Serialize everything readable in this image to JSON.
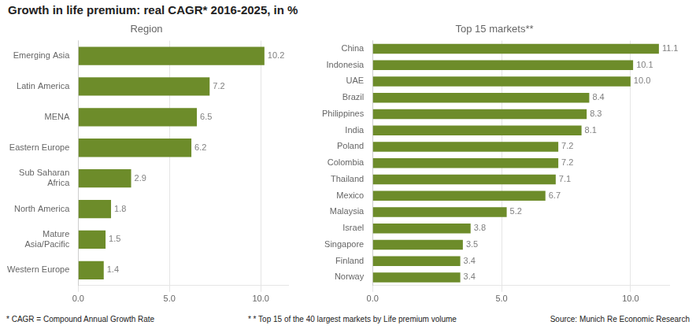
{
  "title": "Growth in life premium: real CAGR* 2016-2025, in %",
  "annotations": [
    "* CAGR = Compound Annual Growth Rate",
    "* * Top 15 of the 40 largest markets by Life premium volume",
    "Source: Munich Re Economic Research"
  ],
  "chart_data": [
    {
      "type": "bar",
      "orientation": "horizontal",
      "title": "Region",
      "categories": [
        "Western Europe",
        "Mature\nAsia/Pacific",
        "North America",
        "Sub Saharan\nAfrica",
        "Eastern Europe",
        "MENA",
        "Latin America",
        "Emerging Asia"
      ],
      "values": [
        1.4,
        1.5,
        1.8,
        2.9,
        6.2,
        6.5,
        7.2,
        10.2
      ],
      "value_labels": [
        "1.4",
        "1.5",
        "1.8",
        "2.9",
        "6.2",
        "6.5",
        "7.2",
        "10.2"
      ],
      "color": "#6d8c2a",
      "xlim": [
        0,
        11.5
      ],
      "xticks": [
        {
          "value": 0,
          "label": "0.0"
        },
        {
          "value": 5,
          "label": "5.0"
        },
        {
          "value": 10,
          "label": "10.0"
        }
      ],
      "grid": true,
      "data_labels": true
    },
    {
      "type": "bar",
      "orientation": "horizontal",
      "title": "Top 15 markets**",
      "categories": [
        "Norway",
        "Finland",
        "Singapore",
        "Israel",
        "Malaysia",
        "Mexico",
        "Thailand",
        "Colombia",
        "Poland",
        "India",
        "Philippines",
        "Brazil",
        "UAE",
        "Indonesia",
        "China"
      ],
      "values": [
        3.4,
        3.4,
        3.5,
        3.8,
        5.2,
        6.7,
        7.1,
        7.2,
        7.2,
        8.1,
        8.3,
        8.4,
        10.0,
        10.1,
        11.1
      ],
      "value_labels": [
        "3.4",
        "3.4",
        "3.5",
        "3.8",
        "5.2",
        "6.7",
        "7.1",
        "7.2",
        "7.2",
        "8.1",
        "8.3",
        "8.4",
        "10.0",
        "10.1",
        "11.1"
      ],
      "color": "#6d8c2a",
      "xlim": [
        0,
        11.5
      ],
      "xticks": [
        {
          "value": 0,
          "label": "0.0"
        },
        {
          "value": 5,
          "label": "5.0"
        },
        {
          "value": 10,
          "label": "10.0"
        }
      ],
      "grid": true,
      "data_labels": true
    }
  ]
}
